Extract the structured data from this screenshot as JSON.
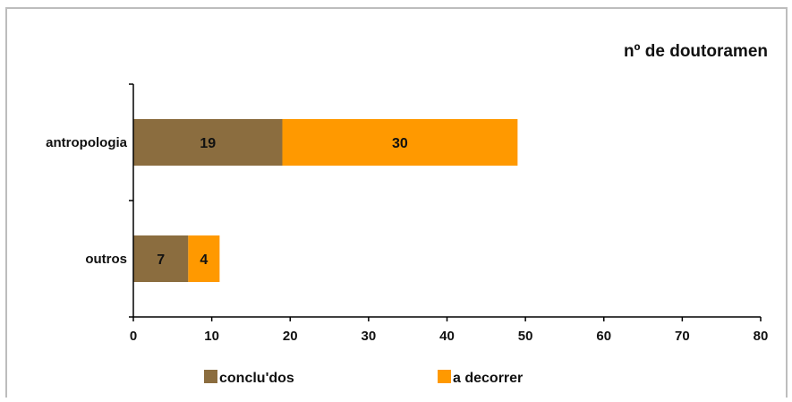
{
  "chart_data": {
    "type": "bar",
    "orientation": "horizontal",
    "stacked": true,
    "title": "nº de doutoramen",
    "categories": [
      "antropologia",
      "outros"
    ],
    "series": [
      {
        "name": "conclu'dos",
        "values": [
          19,
          7
        ],
        "color": "#8b6d3f"
      },
      {
        "name": "a decorrer",
        "values": [
          30,
          4
        ],
        "color": "#ff9900"
      }
    ],
    "xlim": [
      0,
      80
    ],
    "xticks": [
      0,
      10,
      20,
      30,
      40,
      50,
      60,
      70,
      80
    ],
    "grid": false,
    "legend": "bottom"
  }
}
